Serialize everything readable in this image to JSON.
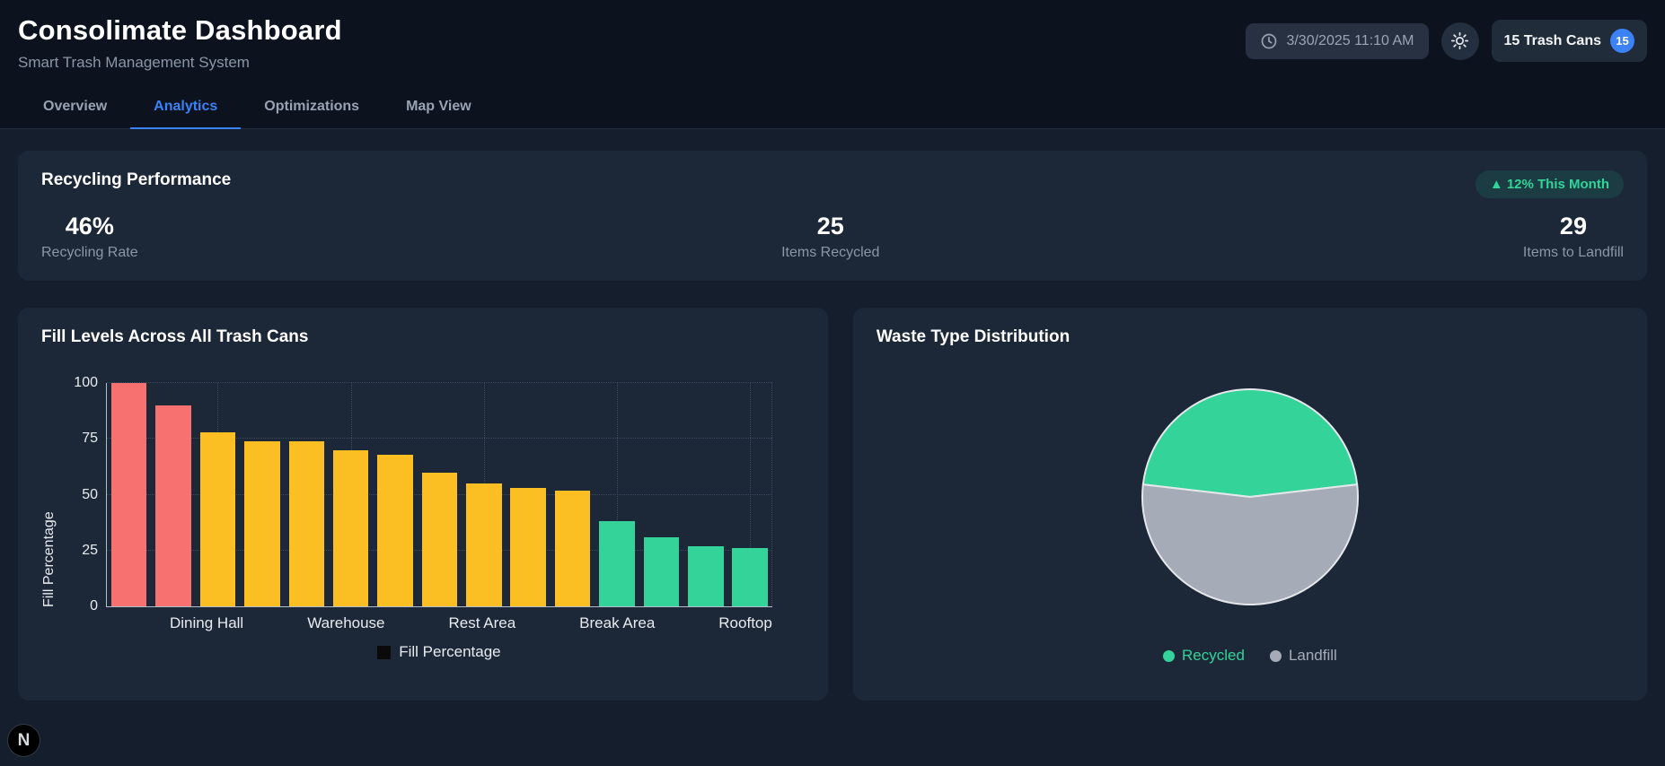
{
  "header": {
    "title": "Consolimate Dashboard",
    "subtitle": "Smart Trash Management System",
    "datetime": "3/30/2025 11:10 AM",
    "trash_cans_label": "15 Trash Cans",
    "trash_cans_count": "15"
  },
  "tabs": [
    {
      "label": "Overview",
      "active": false
    },
    {
      "label": "Analytics",
      "active": true
    },
    {
      "label": "Optimizations",
      "active": false
    },
    {
      "label": "Map View",
      "active": false
    }
  ],
  "recycling": {
    "title": "Recycling Performance",
    "badge": "▲ 12% This Month",
    "stats": [
      {
        "value": "46%",
        "label": "Recycling Rate"
      },
      {
        "value": "25",
        "label": "Items Recycled"
      },
      {
        "value": "29",
        "label": "Items to Landfill"
      }
    ]
  },
  "chart_data": [
    {
      "type": "bar",
      "title": "Fill Levels Across All Trash Cans",
      "ylabel": "Fill Percentage",
      "ylim": [
        0,
        100
      ],
      "yticks": [
        0,
        25,
        50,
        75,
        100
      ],
      "values": [
        100,
        90,
        78,
        74,
        74,
        70,
        68,
        60,
        55,
        53,
        52,
        38,
        31,
        27,
        26
      ],
      "bar_colors": [
        "#f87171",
        "#f87171",
        "#fbbf24",
        "#fbbf24",
        "#fbbf24",
        "#fbbf24",
        "#fbbf24",
        "#fbbf24",
        "#fbbf24",
        "#fbbf24",
        "#fbbf24",
        "#34d399",
        "#34d399",
        "#34d399",
        "#34d399"
      ],
      "x_tick_labels": [
        {
          "index": 2,
          "label": "Dining Hall"
        },
        {
          "index": 5,
          "label": "Warehouse"
        },
        {
          "index": 8,
          "label": "Rest Area"
        },
        {
          "index": 11,
          "label": "Break Area"
        },
        {
          "index": 14,
          "label": "Rooftop"
        }
      ],
      "legend": {
        "label": "Fill Percentage",
        "swatch_color": "#0a0a0a"
      },
      "grid": true
    },
    {
      "type": "pie",
      "title": "Waste Type Distribution",
      "labels": [
        "Recycled",
        "Landfill"
      ],
      "values": [
        25,
        29
      ],
      "colors": [
        "#34d399",
        "#a5acb8"
      ],
      "legend_position": "bottom"
    }
  ],
  "colors": {
    "accent": "#3b82f6",
    "positive": "#34d399",
    "warning": "#fbbf24",
    "danger": "#f87171",
    "neutral": "#a5acb8"
  },
  "dev_badge": "N"
}
